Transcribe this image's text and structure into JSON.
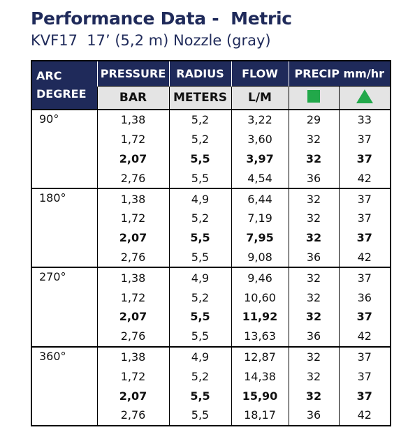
{
  "header": {
    "title": "Performance Data -  Metric",
    "subtitle": "KVF17  17’ (5,2 m) Nozzle (gray)"
  },
  "table": {
    "columns": [
      "ARC DEGREE",
      "PRESSURE",
      "RADIUS",
      "FLOW",
      "PRECIP mm/hr"
    ],
    "units": [
      "BAR",
      "METERS",
      "L/M"
    ],
    "groups": [
      {
        "arc": "90°",
        "rows": [
          [
            "1,38",
            "5,2",
            "3,22",
            "29",
            "33"
          ],
          [
            "1,72",
            "5,2",
            "3,60",
            "32",
            "37"
          ],
          [
            "2,07",
            "5,5",
            "3,97",
            "32",
            "37"
          ],
          [
            "2,76",
            "5,5",
            "4,54",
            "36",
            "42"
          ]
        ]
      },
      {
        "arc": "180°",
        "rows": [
          [
            "1,38",
            "4,9",
            "6,44",
            "32",
            "37"
          ],
          [
            "1,72",
            "5,2",
            "7,19",
            "32",
            "37"
          ],
          [
            "2,07",
            "5,5",
            "7,95",
            "32",
            "37"
          ],
          [
            "2,76",
            "5,5",
            "9,08",
            "36",
            "42"
          ]
        ]
      },
      {
        "arc": "270°",
        "rows": [
          [
            "1,38",
            "4,9",
            "9,46",
            "32",
            "37"
          ],
          [
            "1,72",
            "5,2",
            "10,60",
            "32",
            "36"
          ],
          [
            "2,07",
            "5,5",
            "11,92",
            "32",
            "37"
          ],
          [
            "2,76",
            "5,5",
            "13,63",
            "36",
            "42"
          ]
        ]
      },
      {
        "arc": "360°",
        "rows": [
          [
            "1,38",
            "4,9",
            "12,87",
            "32",
            "37"
          ],
          [
            "1,72",
            "5,2",
            "14,38",
            "32",
            "37"
          ],
          [
            "2,07",
            "5,5",
            "15,90",
            "32",
            "37"
          ],
          [
            "2,76",
            "5,5",
            "18,17",
            "36",
            "42"
          ]
        ]
      }
    ]
  }
}
